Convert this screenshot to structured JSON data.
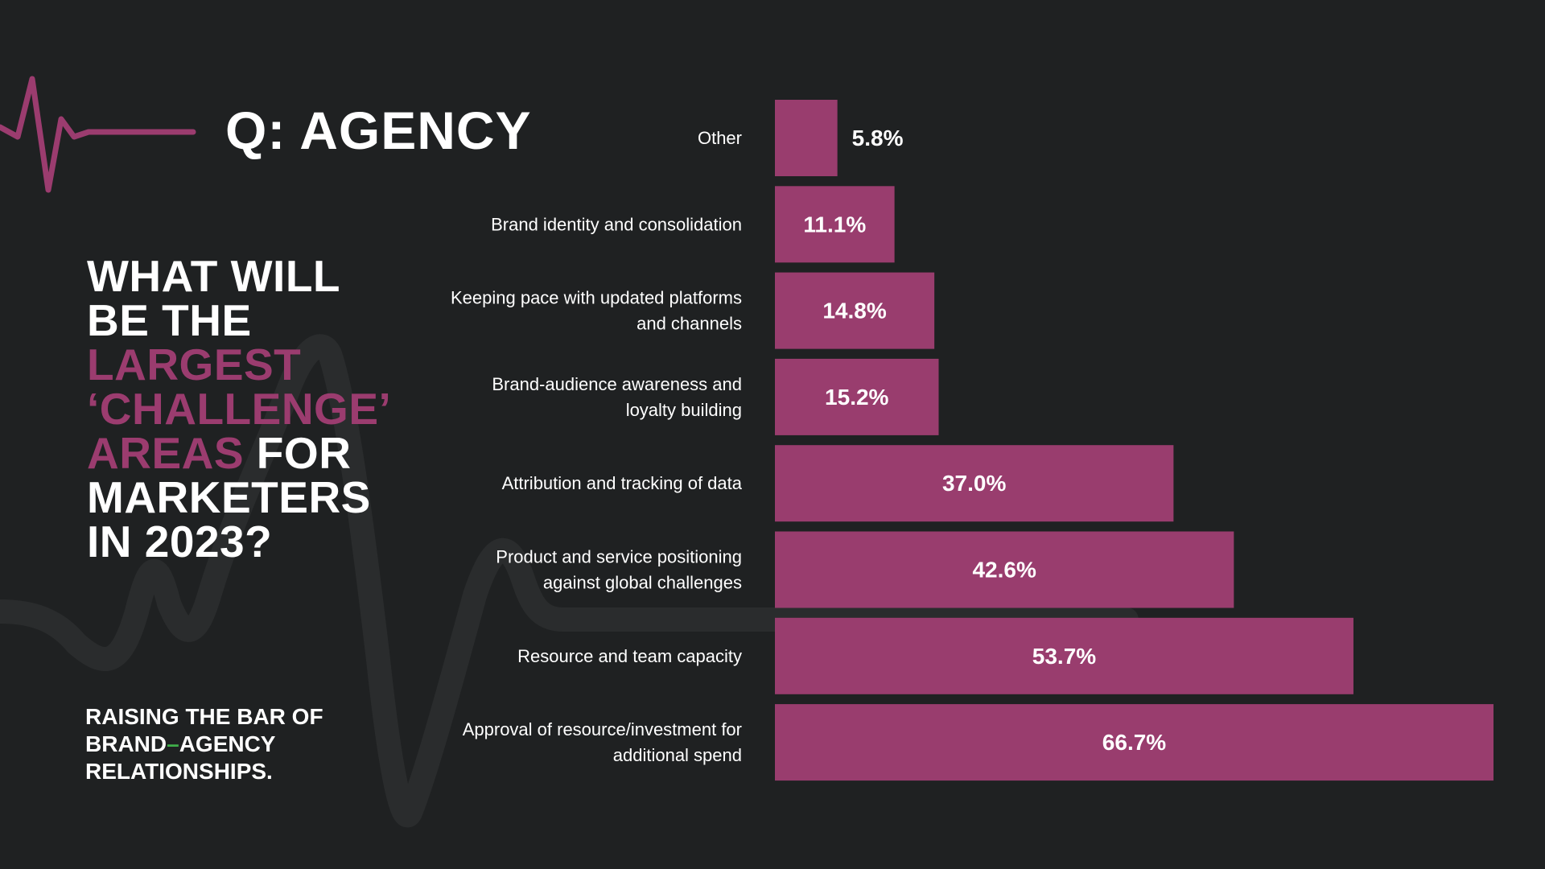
{
  "heading": "Q: AGENCY",
  "question": {
    "line1": "WHAT WILL",
    "line2": "BE THE",
    "line3": "LARGEST",
    "line4": "‘CHALLENGE’",
    "line5a": "AREAS",
    "line5b": " FOR",
    "line6": "MARKETERS",
    "line7": "IN 2023?"
  },
  "tagline": {
    "line1": "RAISING THE BAR OF",
    "line2a": "BRAND",
    "line2dash": "–",
    "line2b": "AGENCY",
    "line3": "RELATIONSHIPS."
  },
  "colors": {
    "background": "#1f2122",
    "bar": "#993d6e",
    "accent": "#9b3c6f",
    "deco": "#2a2c2d",
    "dash": "#3fae49"
  },
  "chart_data": {
    "type": "bar",
    "orientation": "horizontal",
    "title": "Q: AGENCY",
    "xlabel": "",
    "ylabel": "",
    "unit": "%",
    "xlim": [
      0,
      66.7
    ],
    "categories": [
      [
        "Other"
      ],
      [
        "Brand identity and consolidation"
      ],
      [
        "Keeping pace with updated platforms",
        "and channels"
      ],
      [
        "Brand-audience awareness and",
        "loyalty building"
      ],
      [
        "Attribution and tracking of data"
      ],
      [
        "Product and service positioning",
        "against global challenges"
      ],
      [
        "Resource and team capacity"
      ],
      [
        "Approval of resource/investment for",
        "additional spend"
      ]
    ],
    "values": [
      5.8,
      11.1,
      14.8,
      15.2,
      37.0,
      42.6,
      53.7,
      66.7
    ],
    "value_labels": [
      "5.8%",
      "11.1%",
      "14.8%",
      "15.2%",
      "37.0%",
      "42.6%",
      "53.7%",
      "66.7%"
    ]
  }
}
